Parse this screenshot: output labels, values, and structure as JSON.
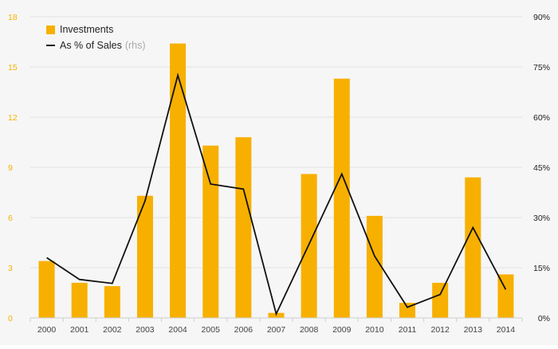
{
  "colors": {
    "bar": "#f7b000",
    "line": "#111111",
    "left_axis_text": "#f7b000",
    "grid": "#e2e2e2"
  },
  "legend": {
    "bar_label": "Investments",
    "line_label": "As % of Sales",
    "line_note": "(rhs)"
  },
  "chart_data": {
    "type": "bar",
    "categories": [
      "2000",
      "2001",
      "2002",
      "2003",
      "2004",
      "2005",
      "2006",
      "2007",
      "2008",
      "2009",
      "2010",
      "2011",
      "2012",
      "2013",
      "2014"
    ],
    "series": [
      {
        "name": "Investments",
        "type": "bar",
        "axis": "left",
        "values": [
          3.4,
          2.1,
          1.9,
          7.3,
          16.4,
          10.3,
          10.8,
          0.3,
          8.6,
          14.3,
          6.1,
          0.9,
          2.1,
          8.4,
          2.6
        ]
      },
      {
        "name": "As % of Sales",
        "type": "line",
        "axis": "right",
        "values": [
          18,
          11.5,
          10.3,
          35,
          72.5,
          40,
          38.5,
          1.2,
          22,
          43,
          18.5,
          3.2,
          7,
          27,
          8.5
        ]
      }
    ],
    "y_left": {
      "ylim": [
        0,
        18
      ],
      "ticks": [
        "0",
        "3",
        "6",
        "9",
        "12",
        "15",
        "18"
      ]
    },
    "y_right": {
      "ylim": [
        0,
        90
      ],
      "ticks": [
        "0%",
        "15%",
        "30%",
        "45%",
        "60%",
        "75%",
        "90%"
      ]
    },
    "grid": true,
    "legend_position": "top-left"
  }
}
